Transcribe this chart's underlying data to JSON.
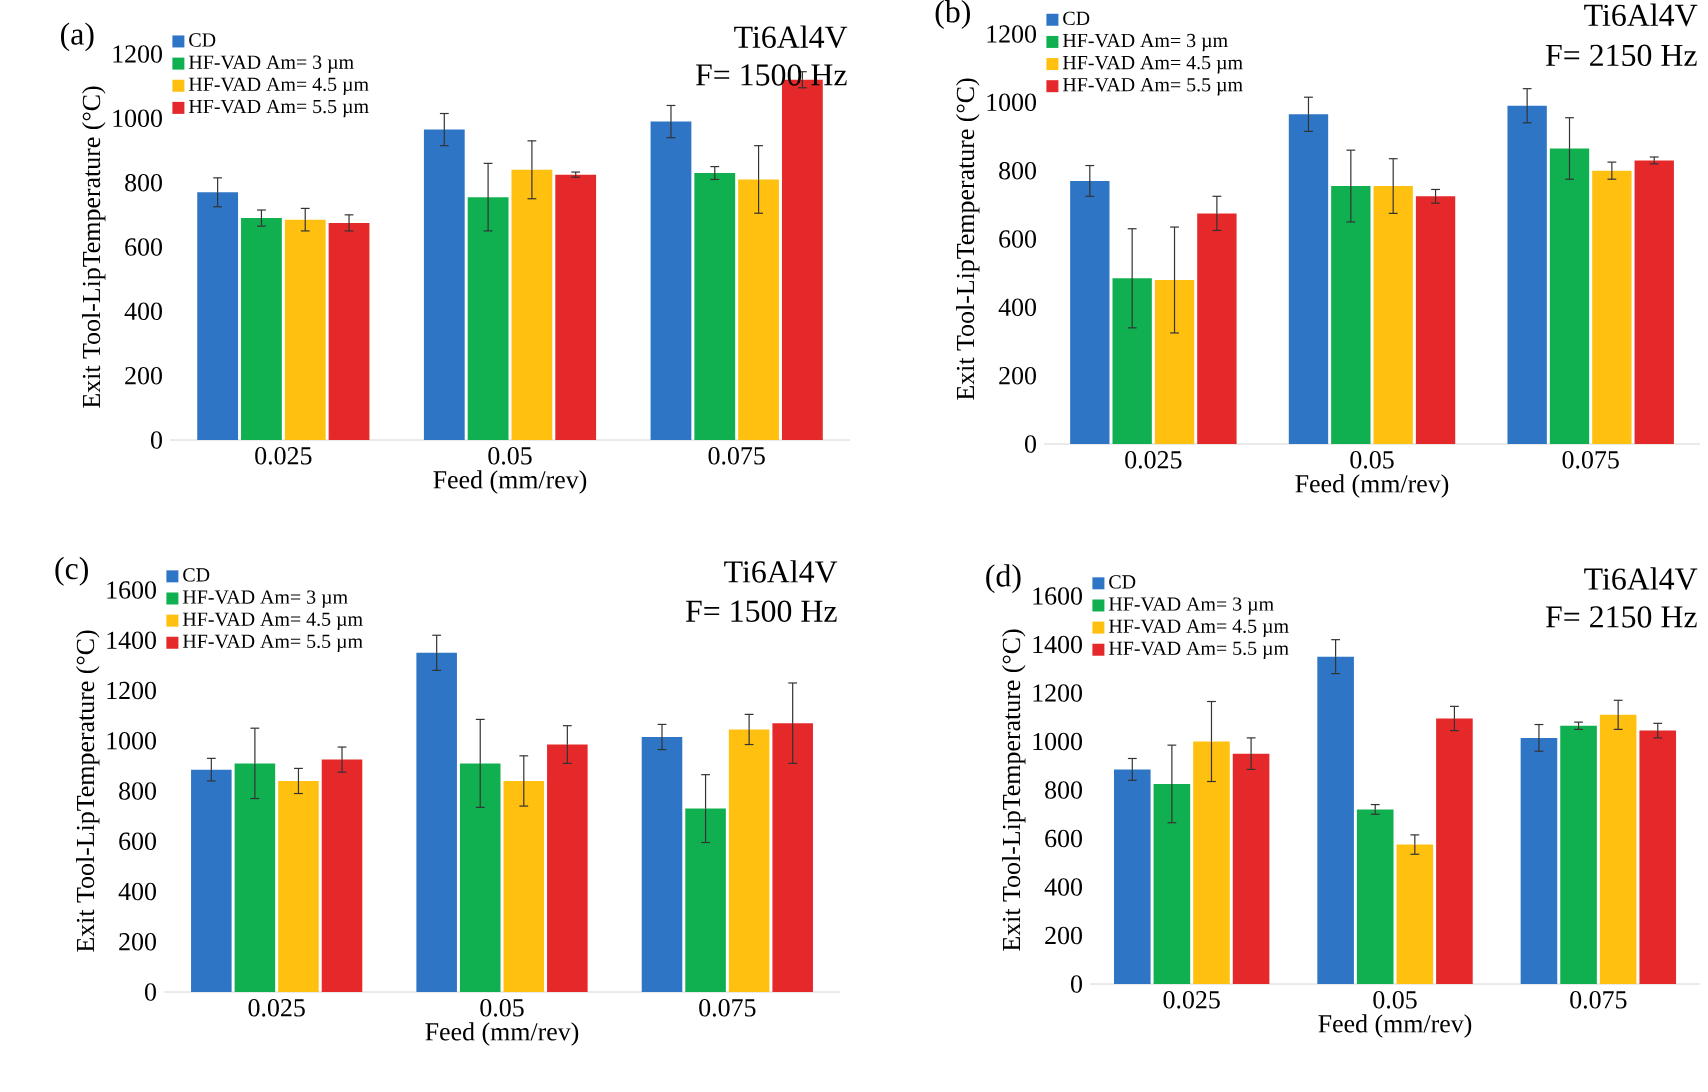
{
  "chart_data": [
    {
      "type": "bar",
      "annotations": [
        "(a)",
        "Ti6Al4V",
        "F= 1500 Hz"
      ],
      "xlabel": "Feed (mm/rev)",
      "ylabel": "Exit Tool-LipTemperature (°C)",
      "categories": [
        "0.025",
        "0.05",
        "0.075"
      ],
      "ylim": [
        0,
        1200
      ],
      "yticks": [
        0,
        200,
        400,
        600,
        800,
        1000,
        1200
      ],
      "legend": "top left",
      "series": [
        {
          "name": "CD",
          "color": "#2e75c6",
          "values": [
            770,
            965,
            990
          ],
          "errors": [
            45,
            50,
            50
          ]
        },
        {
          "name": "HF-VAD Am= 3 µm",
          "color": "#10b050",
          "values": [
            690,
            755,
            830
          ],
          "errors": [
            25,
            105,
            20
          ]
        },
        {
          "name": "HF-VAD Am= 4.5 µm",
          "color": "#ffc010",
          "values": [
            685,
            840,
            810
          ],
          "errors": [
            35,
            90,
            105
          ]
        },
        {
          "name": "HF-VAD Am= 5.5 µm",
          "color": "#e5282a",
          "values": [
            675,
            825,
            1120
          ],
          "errors": [
            25,
            8,
            25
          ]
        }
      ]
    },
    {
      "type": "bar",
      "annotations": [
        "(b)",
        "Ti6Al4V",
        "F= 2150 Hz"
      ],
      "xlabel": "Feed (mm/rev)",
      "ylabel": "Exit Tool-LipTemperature (°C)",
      "categories": [
        "0.025",
        "0.05",
        "0.075"
      ],
      "ylim": [
        0,
        1200
      ],
      "yticks": [
        0,
        200,
        400,
        600,
        800,
        1000,
        1200
      ],
      "legend": "top left",
      "series": [
        {
          "name": "CD",
          "color": "#2e75c6",
          "values": [
            770,
            965,
            990
          ],
          "errors": [
            45,
            50,
            50
          ]
        },
        {
          "name": "HF-VAD Am= 3 µm",
          "color": "#10b050",
          "values": [
            485,
            755,
            865
          ],
          "errors": [
            145,
            105,
            90
          ]
        },
        {
          "name": "HF-VAD Am= 4.5 µm",
          "color": "#ffc010",
          "values": [
            480,
            755,
            800
          ],
          "errors": [
            155,
            80,
            25
          ]
        },
        {
          "name": "HF-VAD Am= 5.5 µm",
          "color": "#e5282a",
          "values": [
            675,
            725,
            830
          ],
          "errors": [
            50,
            20,
            10
          ]
        }
      ]
    },
    {
      "type": "bar",
      "annotations": [
        "(c)",
        "Ti6Al4V",
        "F= 1500 Hz"
      ],
      "xlabel": "Feed (mm/rev)",
      "ylabel": "Exit Tool-LipTemperature (°C)",
      "categories": [
        "0.025",
        "0.05",
        "0.075"
      ],
      "ylim": [
        0,
        1600
      ],
      "yticks": [
        0,
        200,
        400,
        600,
        800,
        1000,
        1200,
        1400,
        1600
      ],
      "legend": "top left",
      "series": [
        {
          "name": "CD",
          "color": "#2e75c6",
          "values": [
            885,
            1350,
            1015
          ],
          "errors": [
            45,
            70,
            50
          ]
        },
        {
          "name": "HF-VAD Am= 3 µm",
          "color": "#10b050",
          "values": [
            910,
            910,
            730
          ],
          "errors": [
            140,
            175,
            135
          ]
        },
        {
          "name": "HF-VAD Am= 4.5 µm",
          "color": "#ffc010",
          "values": [
            840,
            840,
            1045
          ],
          "errors": [
            50,
            100,
            60
          ]
        },
        {
          "name": "HF-VAD Am= 5.5 µm",
          "color": "#e5282a",
          "values": [
            925,
            985,
            1070
          ],
          "errors": [
            50,
            75,
            160
          ]
        }
      ]
    },
    {
      "type": "bar",
      "annotations": [
        "(d)",
        "Ti6Al4V",
        "F= 2150 Hz"
      ],
      "xlabel": "Feed (mm/rev)",
      "ylabel": "Exit Tool-LipTemperature (°C)",
      "categories": [
        "0.025",
        "0.05",
        "0.075"
      ],
      "ylim": [
        0,
        1600
      ],
      "yticks": [
        0,
        200,
        400,
        600,
        800,
        1000,
        1200,
        1400,
        1600
      ],
      "legend": "top left",
      "series": [
        {
          "name": "CD",
          "color": "#2e75c6",
          "values": [
            885,
            1350,
            1015
          ],
          "errors": [
            45,
            70,
            55
          ]
        },
        {
          "name": "HF-VAD Am= 3 µm",
          "color": "#10b050",
          "values": [
            825,
            720,
            1065
          ],
          "errors": [
            160,
            20,
            15
          ]
        },
        {
          "name": "HF-VAD Am= 4.5 µm",
          "color": "#ffc010",
          "values": [
            1000,
            575,
            1110
          ],
          "errors": [
            165,
            40,
            60
          ]
        },
        {
          "name": "HF-VAD Am= 5.5 µm",
          "color": "#e5282a",
          "values": [
            950,
            1095,
            1045
          ],
          "errors": [
            65,
            50,
            30
          ]
        }
      ]
    }
  ]
}
